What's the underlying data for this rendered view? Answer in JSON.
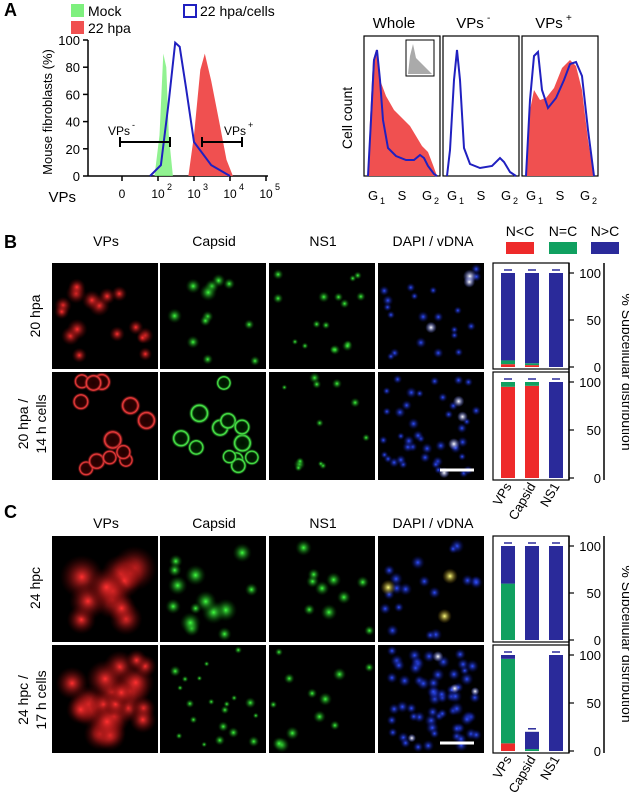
{
  "panel_letters": [
    "A",
    "B",
    "C"
  ],
  "panelA": {
    "legend": {
      "mock": "Mock",
      "hpa22": "22 hpa",
      "hpa22_cells": "22 hpa/cells"
    },
    "histogram": {
      "ylabel": "Mouse fibroblasts (%)",
      "xlabel": "VPs",
      "y_ticks": [
        "100",
        "80",
        "60",
        "40",
        "20",
        "0"
      ],
      "x_ticks": [
        "0",
        "10",
        "10",
        "10",
        "10"
      ],
      "x_tick_exps": [
        "",
        "2",
        "3",
        "4",
        "5"
      ],
      "gate_neg": "VPs",
      "gate_neg_sup": "-",
      "gate_pos": "VPs",
      "gate_pos_sup": "+"
    },
    "cellcycle": {
      "ylabel": "Cell count",
      "titles": [
        "Whole",
        "VPs",
        "VPs"
      ],
      "title_sups": [
        "",
        "-",
        "+"
      ],
      "x_ticks": [
        "G",
        "S",
        "G"
      ],
      "x_tick_subs": [
        "1",
        "",
        "2"
      ]
    }
  },
  "panelB": {
    "columns": [
      "VPs",
      "Capsid",
      "NS1",
      "DAPI / vDNA"
    ],
    "rows": [
      "20 hpa",
      "20 hpa /",
      "14 h cells"
    ],
    "legend": [
      "N<C",
      "N=C",
      "N>C"
    ],
    "ylabel": "% Subcellular distribution",
    "y_ticks": [
      "100",
      "50",
      "0"
    ],
    "x_categories": [
      "VPs",
      "Capsid",
      "NS1"
    ]
  },
  "panelC": {
    "columns": [
      "VPs",
      "Capsid",
      "NS1",
      "DAPI / vDNA"
    ],
    "rows": [
      "24 hpc",
      "24 hpc /",
      "17 h cells"
    ],
    "ylabel": "% Subcellular distribution",
    "y_ticks": [
      "100",
      "50",
      "0"
    ],
    "x_categories": [
      "VPs",
      "Capsid",
      "NS1"
    ]
  },
  "colors": {
    "mock": "#7ef07e",
    "hpa22": "#f05050",
    "hpa22_cells": "#2020c0",
    "n_less_c": "#ee2a2a",
    "n_eq_c": "#10a060",
    "n_gt_c": "#2a2a9a"
  },
  "chart_data": [
    {
      "type": "area",
      "description_series": [
        "Mock",
        "22 hpa",
        "22 hpa/cells"
      ],
      "x_scale": "log",
      "xlabel": "VPs",
      "ylabel": "Mouse fibroblasts (%)",
      "ylim": [
        0,
        100
      ],
      "series": [
        {
          "name": "Mock",
          "x": [
            80,
            110,
            140,
            170,
            200,
            260
          ],
          "y": [
            0,
            30,
            90,
            80,
            30,
            0
          ]
        },
        {
          "name": "22 hpa",
          "x": [
            700,
            1000,
            1500,
            2000,
            3000,
            5000,
            8000,
            12000
          ],
          "y": [
            0,
            30,
            78,
            90,
            70,
            40,
            12,
            0
          ]
        },
        {
          "name": "22 hpa/cells",
          "x": [
            60,
            120,
            200,
            300,
            400,
            600,
            1000,
            3000,
            10000
          ],
          "y": [
            0,
            8,
            55,
            98,
            95,
            65,
            25,
            8,
            0
          ]
        }
      ]
    },
    {
      "type": "bar",
      "title": "20 hpa",
      "categories": [
        "VPs",
        "Capsid",
        "NS1"
      ],
      "series": [
        {
          "name": "N<C",
          "values": [
            3,
            2,
            0
          ]
        },
        {
          "name": "N=C",
          "values": [
            4,
            2,
            0
          ]
        },
        {
          "name": "N>C",
          "values": [
            93,
            96,
            100
          ]
        }
      ],
      "ylim": [
        0,
        100
      ]
    },
    {
      "type": "bar",
      "title": "20 hpa / 14 h cells",
      "categories": [
        "VPs",
        "Capsid",
        "NS1"
      ],
      "series": [
        {
          "name": "N<C",
          "values": [
            95,
            96,
            0
          ]
        },
        {
          "name": "N=C",
          "values": [
            5,
            4,
            0
          ]
        },
        {
          "name": "N>C",
          "values": [
            0,
            0,
            100
          ]
        }
      ],
      "ylim": [
        0,
        100
      ]
    },
    {
      "type": "bar",
      "title": "24 hpc",
      "categories": [
        "VPs",
        "Capsid",
        "NS1"
      ],
      "series": [
        {
          "name": "N<C",
          "values": [
            0,
            0,
            0
          ]
        },
        {
          "name": "N=C",
          "values": [
            60,
            0,
            0
          ]
        },
        {
          "name": "N>C",
          "values": [
            40,
            100,
            100
          ]
        }
      ],
      "ylim": [
        0,
        100
      ]
    },
    {
      "type": "bar",
      "title": "24 hpc / 17 h cells",
      "categories": [
        "VPs",
        "Capsid",
        "NS1"
      ],
      "series": [
        {
          "name": "N<C",
          "values": [
            8,
            0,
            0
          ]
        },
        {
          "name": "N=C",
          "values": [
            88,
            2,
            0
          ]
        },
        {
          "name": "N>C",
          "values": [
            4,
            18,
            100
          ]
        }
      ],
      "ylim": [
        0,
        100
      ]
    }
  ]
}
